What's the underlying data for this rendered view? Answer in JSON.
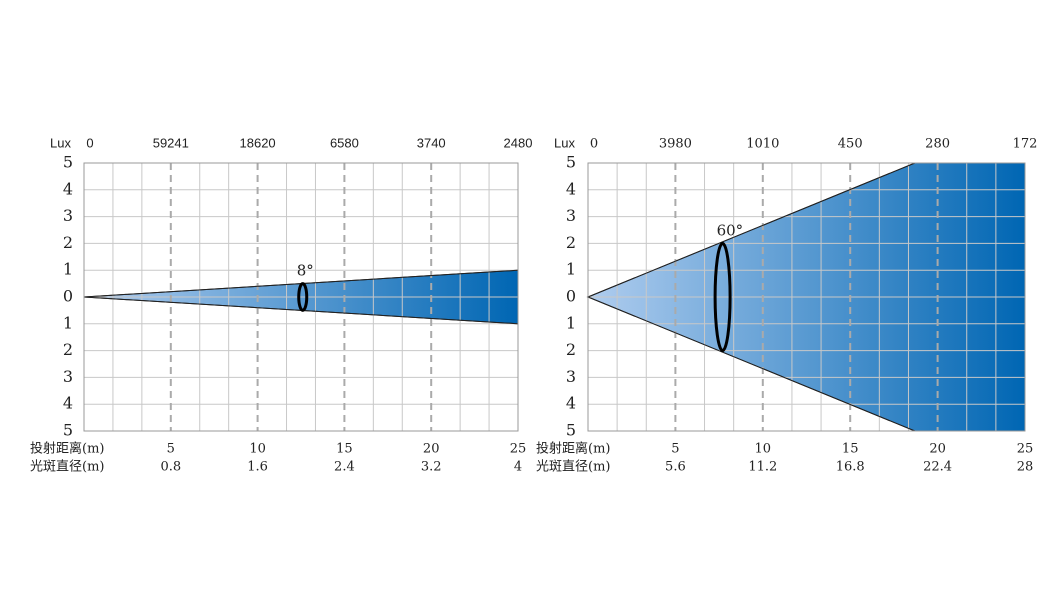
{
  "chart_data": [
    {
      "type": "beam",
      "lux_label": "Lux",
      "lux": [
        0,
        59241,
        18620,
        6580,
        3740,
        2480
      ],
      "distance_label": "投射距离(m)",
      "diameter_label": "光斑直径(m)",
      "xlim": [
        0,
        25
      ],
      "xticks": [
        5,
        10,
        15,
        20,
        25
      ],
      "spot_diameters": [
        0.8,
        1.6,
        2.4,
        3.2,
        4
      ],
      "ylim": [
        -5,
        5
      ],
      "yticks": [
        5,
        4,
        3,
        2,
        1,
        0,
        {
          "value": -1,
          "label": "1"
        },
        {
          "value": -2,
          "label": "2"
        },
        {
          "value": -3,
          "label": "3"
        },
        {
          "value": -4,
          "label": "4"
        },
        {
          "value": -5,
          "label": "5"
        }
      ],
      "beam_x": [
        0,
        25
      ],
      "beam_half_width": [
        0,
        1
      ],
      "angle_marker": {
        "label": "8°",
        "x": 12.6,
        "half_height": 0.5
      },
      "color_start": "#b0cdef",
      "color_end": "#0066b3",
      "grid": true
    },
    {
      "type": "beam",
      "lux_label": "Lux",
      "lux": [
        0,
        3980,
        1010,
        450,
        280,
        172
      ],
      "distance_label": "投射距离(m)",
      "diameter_label": "光斑直径(m)",
      "xlim": [
        0,
        25
      ],
      "xticks": [
        5,
        10,
        15,
        20,
        25
      ],
      "spot_diameters": [
        5.6,
        11.2,
        16.8,
        22.4,
        28
      ],
      "ylim": [
        -5,
        5
      ],
      "yticks": [
        5,
        4,
        3,
        2,
        1,
        0,
        {
          "value": -1,
          "label": "1"
        },
        {
          "value": -2,
          "label": "2"
        },
        {
          "value": -3,
          "label": "3"
        },
        {
          "value": -4,
          "label": "4"
        },
        {
          "value": -5,
          "label": "5"
        }
      ],
      "beam_x": [
        0,
        18.7,
        25
      ],
      "beam_half_width": [
        0,
        5,
        5
      ],
      "angle_marker": {
        "label": "60°",
        "x": 7.7,
        "half_height": 2
      },
      "color_start": "#b0cdef",
      "color_end": "#0066b3",
      "grid": true
    }
  ]
}
